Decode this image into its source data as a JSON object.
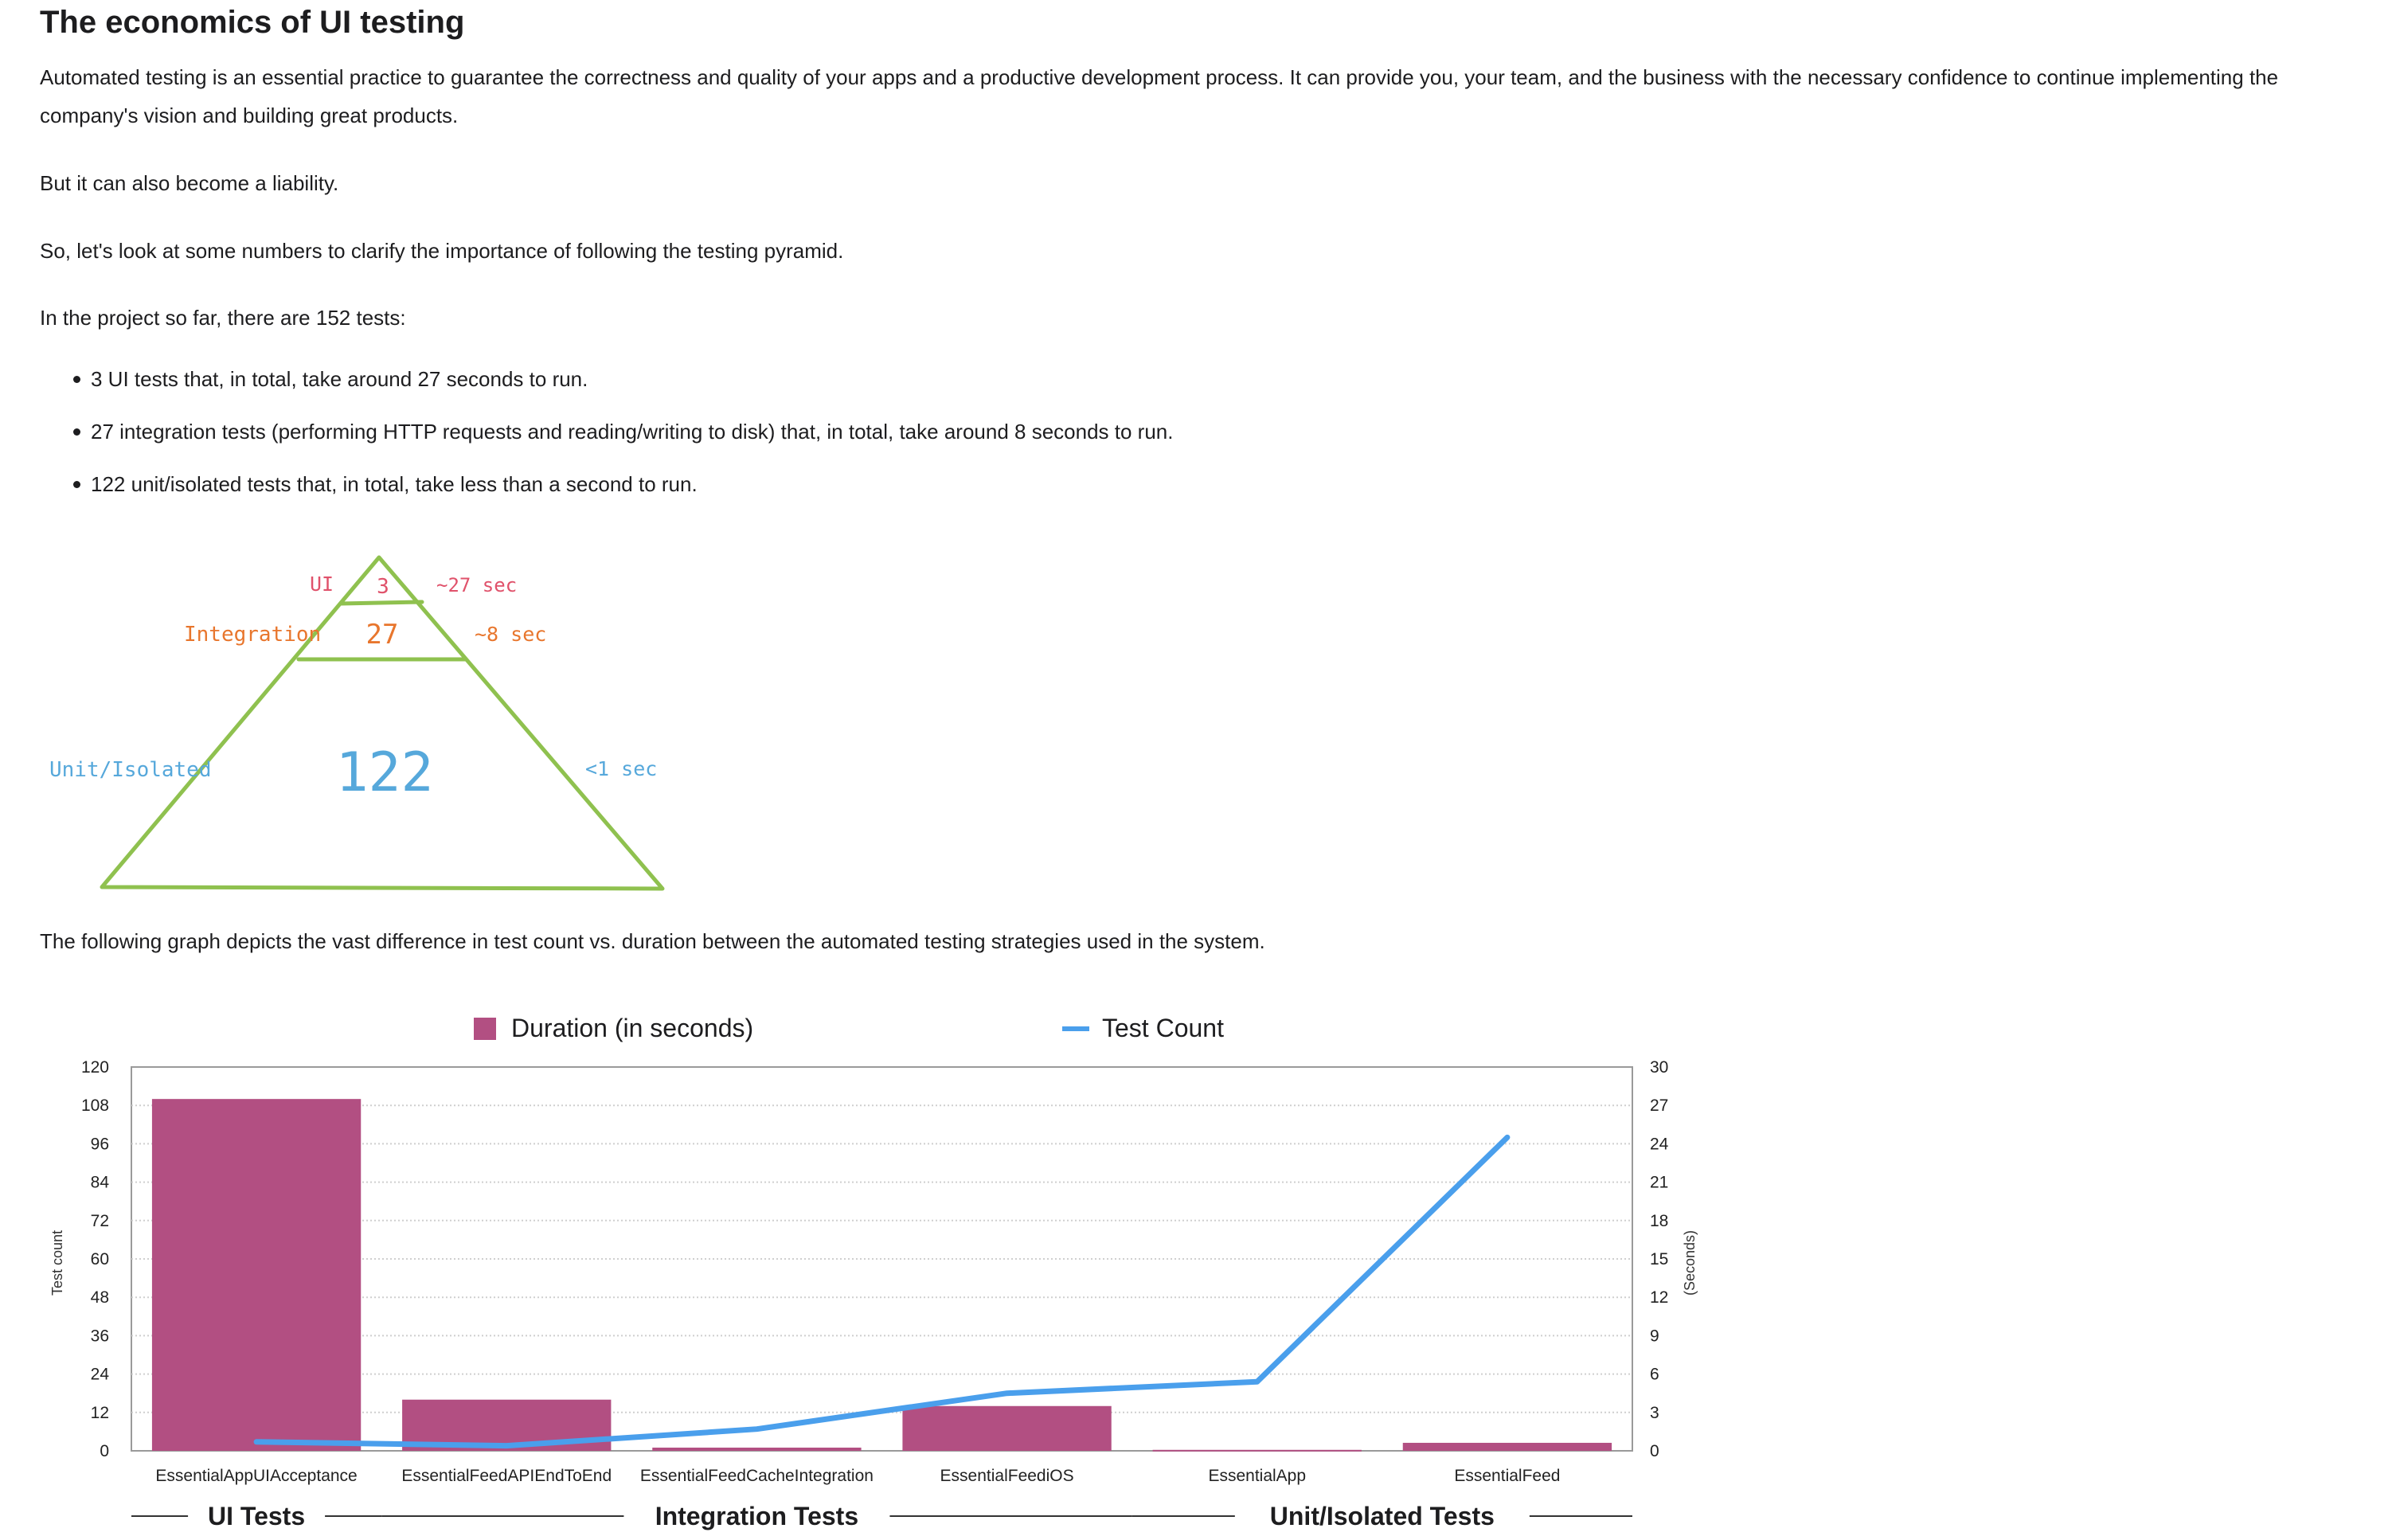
{
  "article": {
    "title": "The economics of UI testing",
    "intro": "Automated testing is an essential practice to guarantee the correctness and quality of your apps and a productive development process. It can provide you, your team, and the business with the necessary confidence to continue implementing the company's vision and building great products.",
    "liability": "But it can also become a liability.",
    "numbers": "So, let's look at some numbers to clarify the importance of following the testing pyramid.",
    "tests_intro": "In the project so far, there are 152 tests:",
    "bullets": [
      "3 UI tests that, in total, take around 27 seconds to run.",
      "27 integration tests (performing HTTP requests and reading/writing to disk) that, in total, take around 8 seconds to run.",
      "122 unit/isolated tests that, in total, take less than a second to run."
    ],
    "graph_caption": "The following graph depicts the vast difference in test count vs. duration between the automated testing strategies used in the system."
  },
  "pyramid": {
    "ui_label": "UI",
    "ui_count": "3",
    "ui_time": "~27 sec",
    "integration_label": "Integration",
    "integration_count": "27",
    "integration_time": "~8 sec",
    "unit_label": "Unit/Isolated",
    "unit_count": "122",
    "unit_time": "<1 sec",
    "colors": {
      "outline": "#8fc14f",
      "ui": "#e0526b",
      "integration": "#e8762d",
      "unit": "#56a8db"
    }
  },
  "chart_data": {
    "type": "bar",
    "legend": {
      "bars": "Duration (in seconds)",
      "line": "Test Count"
    },
    "categories": [
      "EssentialAppUIAcceptance",
      "EssentialFeedAPIEndToEnd",
      "EssentialFeedCacheIntegration",
      "EssentialFeediOS",
      "EssentialApp",
      "EssentialFeed"
    ],
    "series": [
      {
        "name": "Duration (in seconds)",
        "kind": "bar",
        "axis": "left",
        "values": [
          110,
          16,
          1,
          14,
          0.3,
          2.5
        ],
        "color": "#b24f82"
      },
      {
        "name": "Test Count",
        "kind": "line",
        "axis": "right",
        "values": [
          0.7,
          0.4,
          1.7,
          4.5,
          5.4,
          24.5
        ],
        "color": "#4a9fec"
      }
    ],
    "y_left": {
      "label": "Test count",
      "ticks": [
        0,
        12,
        24,
        36,
        48,
        60,
        72,
        84,
        96,
        108,
        120
      ],
      "ylim": [
        0,
        120
      ]
    },
    "y_right": {
      "label": "(Seconds)",
      "ticks": [
        0,
        3,
        6,
        9,
        12,
        15,
        18,
        21,
        24,
        27,
        30
      ],
      "ylim": [
        0,
        30
      ]
    },
    "groups": [
      {
        "label": "UI Tests",
        "from": 0,
        "to": 0
      },
      {
        "label": "Integration Tests",
        "from": 1,
        "to": 3
      },
      {
        "label": "Unit/Isolated Tests",
        "from": 4,
        "to": 5
      }
    ],
    "grid": "horizontal dotted"
  }
}
